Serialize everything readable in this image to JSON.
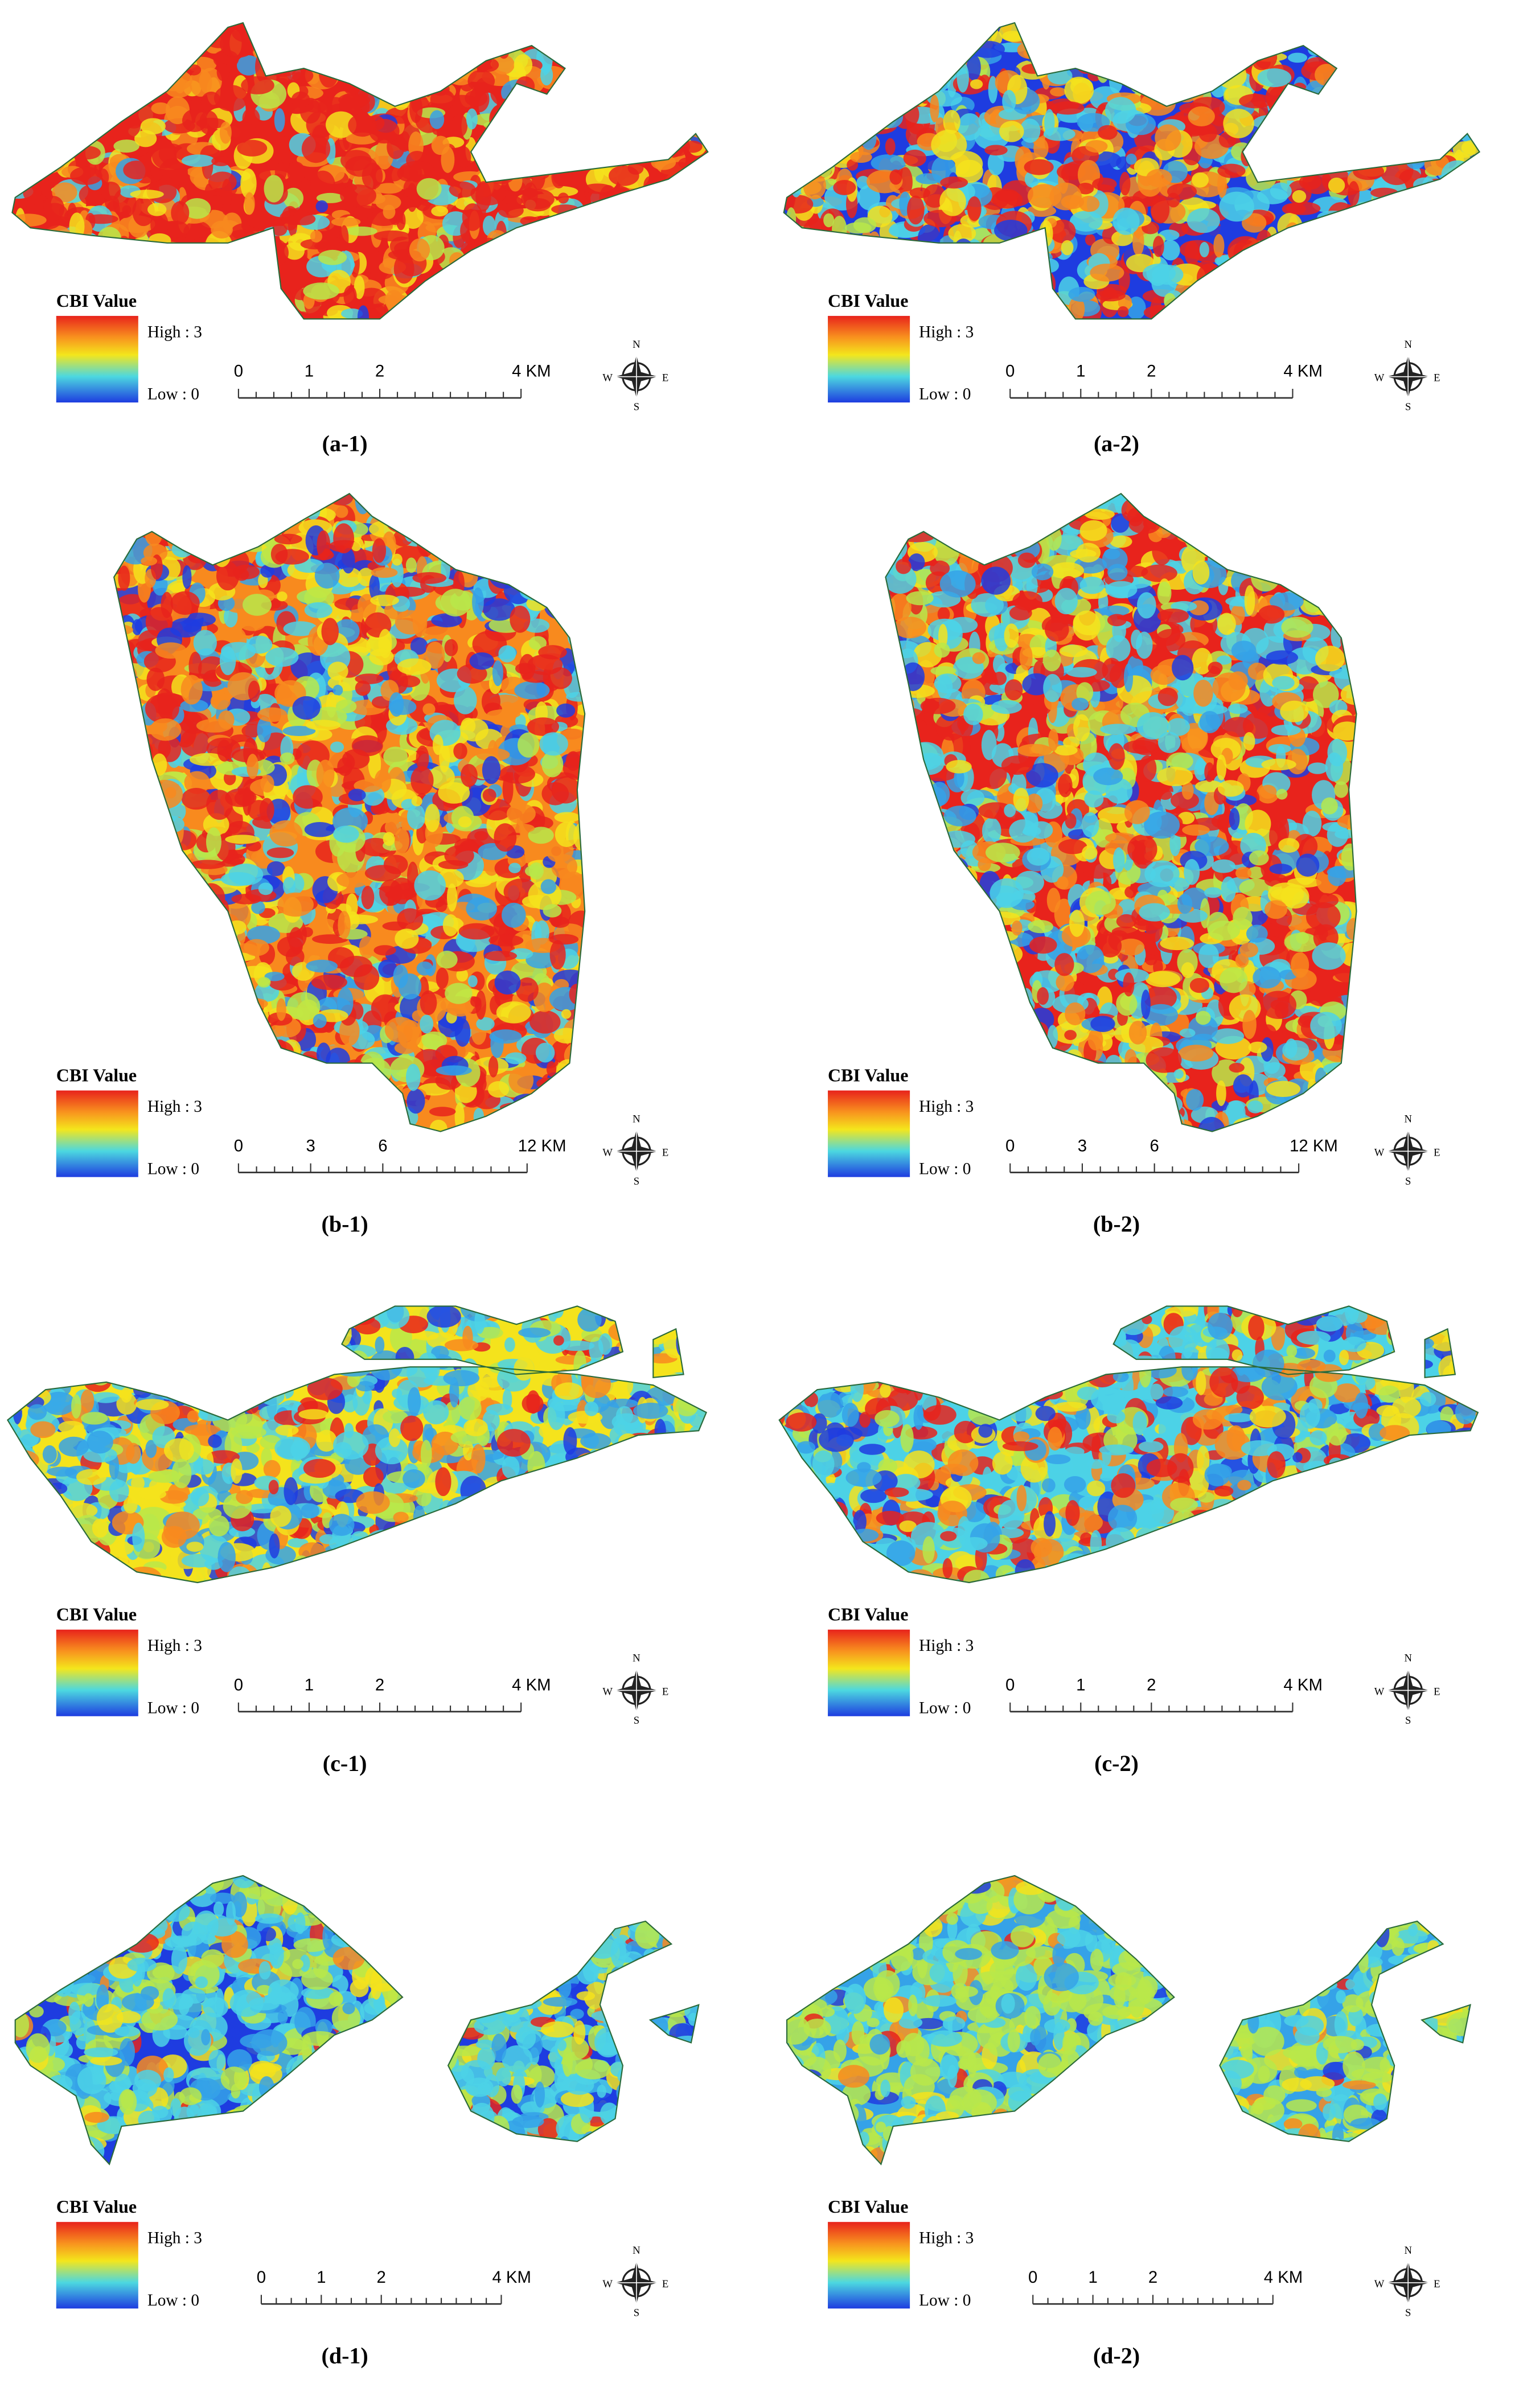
{
  "panels": [
    {
      "label": "(a-1)",
      "legend": {
        "title": "CBI Value",
        "high": "High : 3",
        "low": "Low : 0"
      },
      "scale": [
        "0",
        "1",
        "2",
        "4 KM"
      ],
      "compass": {
        "n": "N",
        "s": "S",
        "e": "E",
        "w": "W"
      }
    },
    {
      "label": "(a-2)",
      "legend": {
        "title": "CBI Value",
        "high": "High : 3",
        "low": "Low : 0"
      },
      "scale": [
        "0",
        "1",
        "2",
        "4 KM"
      ],
      "compass": {
        "n": "N",
        "s": "S",
        "e": "E",
        "w": "W"
      }
    },
    {
      "label": "(b-1)",
      "legend": {
        "title": "CBI Value",
        "high": "High : 3",
        "low": "Low : 0"
      },
      "scale": [
        "0",
        "3",
        "6",
        "12 KM"
      ],
      "compass": {
        "n": "N",
        "s": "S",
        "e": "E",
        "w": "W"
      }
    },
    {
      "label": "(b-2)",
      "legend": {
        "title": "CBI Value",
        "high": "High : 3",
        "low": "Low : 0"
      },
      "scale": [
        "0",
        "3",
        "6",
        "12 KM"
      ],
      "compass": {
        "n": "N",
        "s": "S",
        "e": "E",
        "w": "W"
      }
    },
    {
      "label": "(c-1)",
      "legend": {
        "title": "CBI Value",
        "high": "High : 3",
        "low": "Low : 0"
      },
      "scale": [
        "0",
        "1",
        "2",
        "4 KM"
      ],
      "compass": {
        "n": "N",
        "s": "S",
        "e": "E",
        "w": "W"
      }
    },
    {
      "label": "(c-2)",
      "legend": {
        "title": "CBI Value",
        "high": "High : 3",
        "low": "Low : 0"
      },
      "scale": [
        "0",
        "1",
        "2",
        "4 KM"
      ],
      "compass": {
        "n": "N",
        "s": "S",
        "e": "E",
        "w": "W"
      }
    },
    {
      "label": "(d-1)",
      "legend": {
        "title": "CBI Value",
        "high": "High : 3",
        "low": "Low : 0"
      },
      "scale": [
        "0",
        "1",
        "2",
        "4 KM"
      ],
      "compass": {
        "n": "N",
        "s": "S",
        "e": "E",
        "w": "W"
      }
    },
    {
      "label": "(d-2)",
      "legend": {
        "title": "CBI Value",
        "high": "High : 3",
        "low": "Low : 0"
      },
      "scale": [
        "0",
        "1",
        "2",
        "4 KM"
      ],
      "compass": {
        "n": "N",
        "s": "S",
        "e": "E",
        "w": "W"
      }
    }
  ]
}
